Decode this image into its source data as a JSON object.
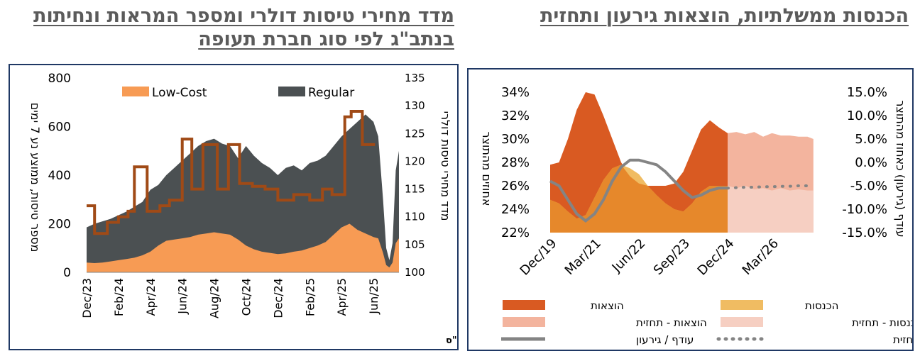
{
  "titles": {
    "left": "מדד מחירי טיסות דולרי ומספר המראות ונחיתות בנתב\"ג לפי סוג חברת תעופה",
    "right": "הכנסות ממשלתיות, הוצאות גירעון ותחזית"
  },
  "colors": {
    "regular": "#4b5052",
    "lowcost": "#f79b54",
    "index_line": "#a04a16",
    "expenses": "#d95a22",
    "revenues": "#f0bc62",
    "expenses_forecast": "#f3b49e",
    "revenues_forecast": "#f6cfc2",
    "deficit": "#848484",
    "axis_text": "#000000",
    "border": "#1f3864"
  },
  "chart_data": [
    {
      "type": "area",
      "left_axis_title": "מספר טיסות, ממוצע נע 7 ימים",
      "right_axis_title": "מדד מחירי טיסות דולרי",
      "source": "מקור: מאגר טיסות, data.gov.il, למ\"ס",
      "ylim": [
        0,
        800
      ],
      "yticks": [
        "0",
        "200",
        "400",
        "600",
        "800"
      ],
      "y2lim": [
        100,
        135
      ],
      "y2ticks": [
        "100",
        "105",
        "110",
        "115",
        "120",
        "125",
        "130",
        "135"
      ],
      "xticks": [
        "Dec/23",
        "Feb/24",
        "Apr/24",
        "Jun/24",
        "Aug/24",
        "Oct/24",
        "Dec/24",
        "Feb/25",
        "Apr/25",
        "Jun/25"
      ],
      "legend": [
        "Low-Cost",
        "Regular"
      ],
      "x_months": [
        0,
        0.5,
        1,
        1.5,
        2,
        2.5,
        3,
        3.5,
        4,
        4.5,
        5,
        5.5,
        6,
        6.5,
        7,
        7.5,
        8,
        8.5,
        9,
        9.5,
        10,
        10.5,
        11,
        11.5,
        12,
        12.5,
        13,
        13.5,
        14,
        14.5,
        15,
        15.5,
        16,
        16.5,
        17,
        17.5,
        18,
        18.3,
        18.6,
        18.8,
        19,
        19.2,
        19.4,
        19.6
      ],
      "total_flights": [
        185,
        200,
        210,
        220,
        235,
        250,
        270,
        290,
        340,
        360,
        400,
        430,
        460,
        490,
        520,
        540,
        550,
        530,
        520,
        470,
        520,
        480,
        450,
        430,
        400,
        430,
        440,
        420,
        450,
        460,
        480,
        520,
        560,
        590,
        620,
        650,
        620,
        560,
        300,
        100,
        50,
        120,
        420,
        500
      ],
      "lowcost_flights": [
        40,
        38,
        40,
        45,
        50,
        55,
        60,
        70,
        85,
        110,
        130,
        135,
        140,
        145,
        155,
        160,
        165,
        160,
        155,
        135,
        110,
        95,
        85,
        80,
        75,
        78,
        85,
        90,
        100,
        110,
        125,
        155,
        185,
        200,
        175,
        160,
        145,
        140,
        80,
        30,
        20,
        40,
        120,
        140
      ],
      "price_index": {
        "x": [
          0,
          0.5,
          0.5,
          1.3,
          1.3,
          2.0,
          2.0,
          2.6,
          2.6,
          3.0,
          3.0,
          3.8,
          3.8,
          4.6,
          4.6,
          5.2,
          5.2,
          6.0,
          6.0,
          6.6,
          6.6,
          7.3,
          7.3,
          8.2,
          8.2,
          8.9,
          8.9,
          9.6,
          9.6,
          10.4,
          10.4,
          11.2,
          11.2,
          12.0,
          12.0,
          13.0,
          13.0,
          14.0,
          14.0,
          14.8,
          14.8,
          15.4,
          15.4,
          16.2,
          16.2,
          16.6,
          16.6,
          17.3,
          17.3,
          17.8,
          17.8,
          18.1
        ],
        "y": [
          112,
          112,
          107,
          107,
          109,
          109,
          110,
          110,
          111,
          111,
          119,
          119,
          111,
          111,
          112,
          112,
          113,
          113,
          124,
          124,
          115,
          115,
          123,
          123,
          115,
          115,
          123,
          123,
          116,
          116,
          115.5,
          115.5,
          115,
          115,
          113,
          113,
          114,
          114,
          113,
          113,
          115,
          115,
          114,
          114,
          128,
          128,
          129,
          129,
          123,
          123,
          123,
          123
        ]
      }
    },
    {
      "type": "area",
      "left_axis_title": "אחוזים מהתוצר",
      "right_axis_title": "עודף (גירעון) כאחוז מהתוצר",
      "ylim": [
        0.22,
        0.34
      ],
      "yticks": [
        "22%",
        "24%",
        "26%",
        "28%",
        "30%",
        "32%",
        "34%"
      ],
      "y2lim": [
        -0.15,
        0.15
      ],
      "y2ticks": [
        "-15.0%",
        "-10.0%",
        "-5.0%",
        "0.0%",
        "5.0%",
        "10.0%",
        "15.0%"
      ],
      "xticks": [
        "Dec/19",
        "Mar/21",
        "Jun/22",
        "Sep/23",
        "Dec/24",
        "Mar/26"
      ],
      "x": [
        0,
        3,
        6,
        9,
        12,
        15,
        18,
        21,
        24,
        27,
        30,
        33,
        36,
        39,
        42,
        45,
        48,
        51,
        54,
        57,
        60,
        63,
        66,
        69,
        72,
        75,
        78,
        81,
        84,
        87,
        90
      ],
      "expenses": [
        0.278,
        0.28,
        0.3,
        0.325,
        0.34,
        0.338,
        0.32,
        0.3,
        0.28,
        0.268,
        0.262,
        0.26,
        0.26,
        0.26,
        0.262,
        0.272,
        0.29,
        0.308,
        0.316,
        0.31,
        0.305
      ],
      "revenues": [
        0.248,
        0.245,
        0.238,
        0.232,
        0.235,
        0.25,
        0.265,
        0.275,
        0.278,
        0.275,
        0.27,
        0.26,
        0.252,
        0.245,
        0.24,
        0.238,
        0.245,
        0.255,
        0.26,
        0.26,
        0.26
      ],
      "deficit": [
        -0.04,
        -0.05,
        -0.08,
        -0.11,
        -0.125,
        -0.11,
        -0.08,
        -0.04,
        -0.01,
        0.005,
        0.005,
        0.0,
        -0.005,
        -0.02,
        -0.04,
        -0.06,
        -0.075,
        -0.07,
        -0.06,
        -0.055,
        -0.055
      ],
      "forecast_x": [
        60,
        63,
        66,
        69,
        72,
        75,
        78,
        81,
        84,
        87,
        89
      ],
      "expenses_forecast": [
        0.305,
        0.306,
        0.304,
        0.306,
        0.302,
        0.305,
        0.303,
        0.303,
        0.302,
        0.302,
        0.3
      ],
      "revenues_forecast": [
        0.26,
        0.258,
        0.26,
        0.257,
        0.258,
        0.256,
        0.258,
        0.256,
        0.257,
        0.256,
        0.256
      ],
      "deficit_forecast": [
        -0.055,
        -0.054,
        -0.053,
        -0.053,
        -0.052,
        -0.052,
        -0.051,
        -0.051,
        -0.05,
        -0.05,
        -0.049
      ],
      "legend": {
        "expenses": "הוצאות",
        "revenues": "הכנסות",
        "expenses_forecast": "הוצאות - תחזית",
        "revenues_forecast": "הכנסות - תחזית",
        "deficit": "עודף / גירעון",
        "deficit_forecast": "עודף / גירעון - תחזית"
      }
    }
  ]
}
